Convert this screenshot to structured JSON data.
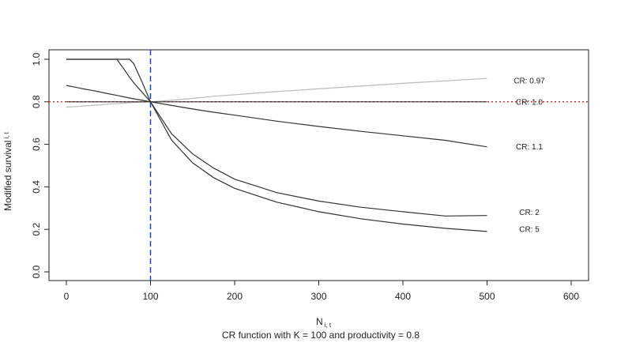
{
  "chart_data": {
    "type": "line",
    "xlabel": {
      "main": "N",
      "sub": "i, t"
    },
    "ylabel": {
      "main": "Modified survival",
      "sub": "i, t"
    },
    "caption": "CR function with K = 100 and productivity = 0.8",
    "xlim": [
      0,
      600
    ],
    "ylim": [
      0.0,
      1.0
    ],
    "x_ticks": [
      0,
      100,
      200,
      300,
      400,
      500,
      600
    ],
    "y_ticks": [
      "0.0",
      "0.2",
      "0.4",
      "0.6",
      "0.8",
      "1.0"
    ],
    "grid": false,
    "x": [
      0,
      10,
      20,
      30,
      40,
      50,
      60,
      70,
      75,
      80,
      90,
      100,
      125,
      150,
      175,
      200,
      250,
      300,
      350,
      400,
      450,
      500
    ],
    "series": [
      {
        "name": "CR: 0.97",
        "color": "#bbbbbb",
        "values": [
          0.775,
          0.777,
          0.78,
          0.783,
          0.786,
          0.789,
          0.791,
          0.794,
          0.796,
          0.797,
          0.799,
          0.8,
          0.807,
          0.816,
          0.826,
          0.833,
          0.848,
          0.861,
          0.874,
          0.887,
          0.898,
          0.91
        ]
      },
      {
        "name": "CR: 1.0",
        "color": "#333333",
        "values": [
          0.8,
          0.8,
          0.8,
          0.8,
          0.8,
          0.8,
          0.8,
          0.8,
          0.8,
          0.8,
          0.8,
          0.8,
          0.8,
          0.8,
          0.8,
          0.8,
          0.8,
          0.8,
          0.8,
          0.8,
          0.8,
          0.8
        ]
      },
      {
        "name": "CR: 1.1",
        "color": "#333333",
        "values": [
          0.877,
          0.869,
          0.861,
          0.854,
          0.846,
          0.838,
          0.83,
          0.822,
          0.818,
          0.814,
          0.807,
          0.8,
          0.783,
          0.766,
          0.751,
          0.737,
          0.709,
          0.684,
          0.661,
          0.64,
          0.619,
          0.588
        ]
      },
      {
        "name": "CR: 2",
        "color": "#333333",
        "values": [
          1.0,
          1.0,
          1.0,
          1.0,
          1.0,
          1.0,
          1.0,
          1.0,
          1.0,
          0.98,
          0.893,
          0.8,
          0.65,
          0.555,
          0.488,
          0.436,
          0.373,
          0.333,
          0.304,
          0.283,
          0.263,
          0.265
        ]
      },
      {
        "name": "CR: 5",
        "color": "#333333",
        "values": [
          1.0,
          1.0,
          1.0,
          1.0,
          1.0,
          1.0,
          1.0,
          0.945,
          0.916,
          0.89,
          0.845,
          0.8,
          0.62,
          0.513,
          0.443,
          0.393,
          0.328,
          0.283,
          0.25,
          0.225,
          0.205,
          0.19
        ]
      }
    ],
    "series_label_values": [
      0.9,
      0.8,
      0.59,
      0.28,
      0.2
    ],
    "reference_lines": [
      {
        "kind": "vertical",
        "value": 100,
        "color": "#1f3fbf",
        "style": "dashed"
      },
      {
        "kind": "horizontal",
        "value": 0.8,
        "color": "#e03030",
        "style": "dotted"
      }
    ]
  }
}
